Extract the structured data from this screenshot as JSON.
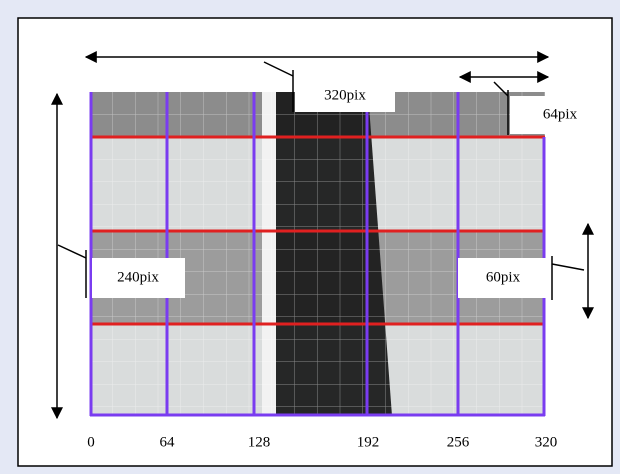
{
  "labels": {
    "width": "320pix",
    "cell_width": "64pix",
    "height": "240pix",
    "cell_height": "60pix"
  },
  "axis_labels": [
    0,
    64,
    128,
    192,
    256,
    320
  ]
}
